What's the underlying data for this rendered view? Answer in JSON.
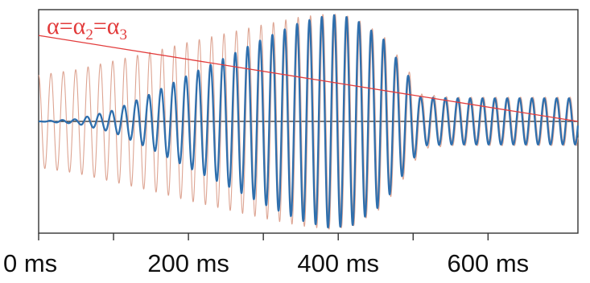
{
  "chart_data": {
    "type": "line",
    "title": "",
    "xlabel": "",
    "ylabel": "",
    "x_unit": "ms",
    "xlim": [
      0,
      720
    ],
    "ylim": [
      -1,
      1
    ],
    "grid": false,
    "x_ticks": [
      {
        "value": 0,
        "label": "0 ms"
      },
      {
        "value": 100,
        "label": ""
      },
      {
        "value": 200,
        "label": "200 ms"
      },
      {
        "value": 300,
        "label": ""
      },
      {
        "value": 400,
        "label": "400 ms"
      },
      {
        "value": 500,
        "label": ""
      },
      {
        "value": 600,
        "label": "600 ms"
      }
    ],
    "legend": {
      "parts": [
        "α=α",
        "2",
        "=α",
        "3"
      ],
      "placement": "top-left",
      "color": "#e23b3b"
    },
    "reference_line": {
      "color": "#e23b3b",
      "x": [
        0,
        720
      ],
      "y": [
        0.78,
        0.0
      ]
    },
    "series": [
      {
        "role": "oscillation-1",
        "color": "#d99a86",
        "cycle_period_ms": 16.5,
        "envelope": {
          "x": [
            0,
            50,
            100,
            150,
            200,
            250,
            300,
            350,
            390,
            420,
            460,
            500,
            510,
            550,
            600,
            650,
            700,
            720
          ],
          "y": [
            0.42,
            0.47,
            0.55,
            0.63,
            0.72,
            0.8,
            0.88,
            0.95,
            0.98,
            0.95,
            0.78,
            0.4,
            0.25,
            0.22,
            0.22,
            0.22,
            0.22,
            0.22
          ]
        }
      },
      {
        "role": "oscillation-2",
        "color": "#2f6fad",
        "cycle_period_ms": 16.5,
        "envelope": {
          "x": [
            0,
            50,
            100,
            150,
            200,
            250,
            300,
            350,
            390,
            420,
            460,
            500,
            510,
            550,
            600,
            650,
            700,
            720
          ],
          "y": [
            0.0,
            0.02,
            0.1,
            0.25,
            0.42,
            0.58,
            0.75,
            0.9,
            0.97,
            0.94,
            0.75,
            0.35,
            0.22,
            0.21,
            0.21,
            0.21,
            0.21,
            0.21
          ]
        }
      }
    ]
  }
}
